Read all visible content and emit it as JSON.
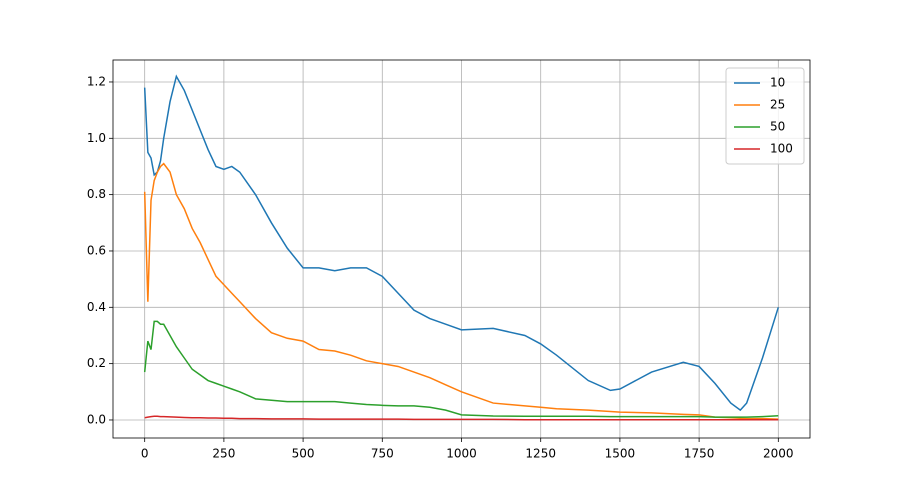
{
  "chart_data": {
    "type": "line",
    "x": [
      0,
      10,
      20,
      30,
      40,
      50,
      60,
      80,
      100,
      125,
      150,
      175,
      200,
      225,
      250,
      275,
      300,
      350,
      400,
      450,
      500,
      550,
      600,
      650,
      700,
      750,
      800,
      850,
      900,
      950,
      1000,
      1100,
      1200,
      1250,
      1300,
      1400,
      1470,
      1500,
      1600,
      1700,
      1750,
      1800,
      1850,
      1880,
      1900,
      1950,
      2000
    ],
    "series": [
      {
        "name": "10",
        "color": "#1f77b4",
        "values": [
          1.18,
          0.95,
          0.93,
          0.87,
          0.88,
          0.92,
          1.0,
          1.13,
          1.22,
          1.17,
          1.1,
          1.03,
          0.96,
          0.9,
          0.89,
          0.9,
          0.88,
          0.8,
          0.7,
          0.61,
          0.54,
          0.54,
          0.53,
          0.54,
          0.54,
          0.51,
          0.45,
          0.39,
          0.36,
          0.34,
          0.32,
          0.325,
          0.3,
          0.27,
          0.23,
          0.14,
          0.105,
          0.11,
          0.17,
          0.205,
          0.19,
          0.13,
          0.06,
          0.035,
          0.06,
          0.22,
          0.4
        ]
      },
      {
        "name": "25",
        "color": "#ff7f0e",
        "values": [
          0.81,
          0.42,
          0.78,
          0.85,
          0.88,
          0.9,
          0.91,
          0.88,
          0.8,
          0.75,
          0.68,
          0.63,
          0.57,
          0.51,
          0.48,
          0.45,
          0.42,
          0.36,
          0.31,
          0.29,
          0.28,
          0.25,
          0.245,
          0.23,
          0.21,
          0.2,
          0.19,
          0.17,
          0.15,
          0.125,
          0.1,
          0.06,
          0.05,
          0.045,
          0.04,
          0.035,
          0.03,
          0.028,
          0.025,
          0.02,
          0.018,
          0.01,
          0.008,
          0.006,
          0.005,
          0.005,
          0.003
        ]
      },
      {
        "name": "50",
        "color": "#2ca02c",
        "values": [
          0.17,
          0.28,
          0.25,
          0.35,
          0.35,
          0.34,
          0.34,
          0.3,
          0.26,
          0.22,
          0.18,
          0.16,
          0.14,
          0.13,
          0.12,
          0.11,
          0.1,
          0.075,
          0.07,
          0.065,
          0.065,
          0.065,
          0.065,
          0.06,
          0.055,
          0.052,
          0.05,
          0.05,
          0.045,
          0.035,
          0.018,
          0.014,
          0.013,
          0.013,
          0.013,
          0.013,
          0.012,
          0.012,
          0.012,
          0.012,
          0.012,
          0.01,
          0.01,
          0.01,
          0.01,
          0.012,
          0.015
        ]
      },
      {
        "name": "100",
        "color": "#d62728",
        "values": [
          0.008,
          0.01,
          0.012,
          0.013,
          0.013,
          0.012,
          0.012,
          0.011,
          0.01,
          0.009,
          0.008,
          0.008,
          0.007,
          0.007,
          0.006,
          0.006,
          0.005,
          0.005,
          0.004,
          0.004,
          0.004,
          0.003,
          0.003,
          0.003,
          0.003,
          0.003,
          0.003,
          0.002,
          0.002,
          0.002,
          0.002,
          0.002,
          0.001,
          0.001,
          0.001,
          0.001,
          0.001,
          0.001,
          0.001,
          0.001,
          0.001,
          0.001,
          0.001,
          0.001,
          0.001,
          0.001,
          0.001
        ]
      }
    ],
    "xlim": [
      -100,
      2100
    ],
    "ylim": [
      -0.064,
      1.278
    ],
    "xticks": [
      0,
      250,
      500,
      750,
      1000,
      1250,
      1500,
      1750,
      2000
    ],
    "yticks": [
      {
        "value": 0,
        "label": "0.0"
      },
      0.2,
      0.4,
      0.6,
      0.8,
      {
        "value": 1,
        "label": "1.0"
      },
      1.2
    ],
    "grid": true,
    "legend": "upper right"
  }
}
